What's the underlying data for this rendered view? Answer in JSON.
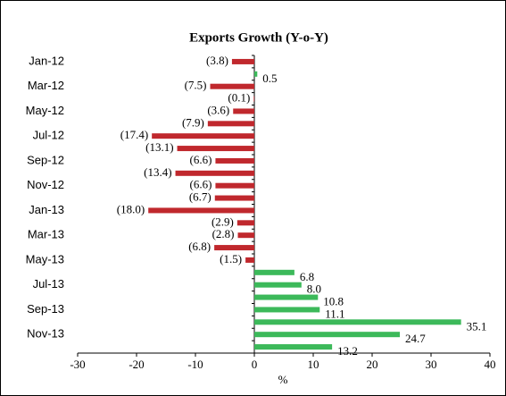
{
  "chart_data": {
    "type": "barh",
    "title": "Exports Growth (Y-o-Y)",
    "x_label": "%",
    "categories": [
      "Jan-12",
      null,
      "Mar-12",
      null,
      "May-12",
      null,
      "Jul-12",
      null,
      "Sep-12",
      null,
      "Nov-12",
      null,
      "Jan-13",
      null,
      "Mar-13",
      null,
      "May-13",
      null,
      "Jul-13",
      null,
      "Sep-13",
      null,
      "Nov-13",
      null
    ],
    "values": [
      -3.8,
      0.5,
      -7.5,
      -0.1,
      -3.6,
      -7.9,
      -17.4,
      -13.1,
      -6.6,
      -13.4,
      -6.6,
      -6.7,
      -18.0,
      -2.9,
      -2.8,
      -6.8,
      -1.5,
      6.8,
      8.0,
      10.8,
      11.1,
      35.1,
      24.7,
      13.2
    ],
    "value_labels": [
      "(3.8)",
      "0.5",
      "(7.5)",
      "(0.1)",
      "(3.6)",
      "(7.9)",
      "(17.4)",
      "(13.1)",
      "(6.6)",
      "(13.4)",
      "(6.6)",
      "(6.7)",
      "(18.0)",
      "(2.9)",
      "(2.8)",
      "(6.8)",
      "(1.5)",
      "6.8",
      "8.0",
      "10.8",
      "11.1",
      "35.1",
      "24.7",
      "13.2"
    ],
    "color_negative": "#c0282d",
    "color_positive": "#3cb95a",
    "xlim": [
      -30,
      40
    ],
    "xticks": [
      -30,
      -20,
      -10,
      0,
      10,
      20,
      30,
      40
    ]
  }
}
